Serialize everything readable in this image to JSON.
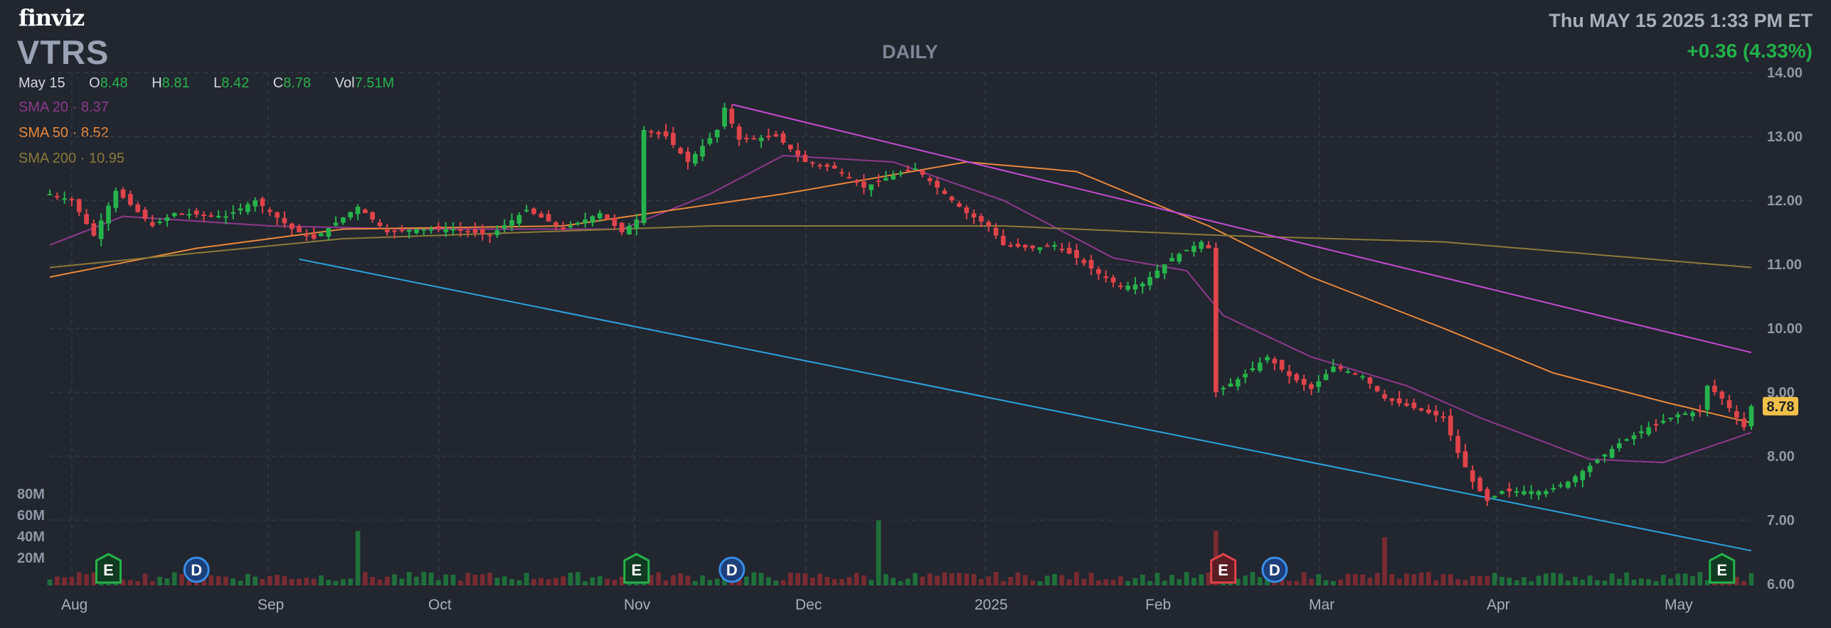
{
  "header": {
    "logo": "finviz",
    "ticker": "VTRS",
    "timeframe": "DAILY",
    "datetime": "Thu MAY 15 2025 1:33 PM ET",
    "change": "+0.36 (4.33%)"
  },
  "ohlc": {
    "date": "May 15",
    "o_label": "O",
    "o": "8.48",
    "h_label": "H",
    "h": "8.81",
    "l_label": "L",
    "l": "8.42",
    "c_label": "C",
    "c": "8.78",
    "vol_label": "Vol",
    "vol": "7.51M"
  },
  "sma_legend": [
    {
      "label": "SMA 20",
      "value": "8.37",
      "color": "#8e3a8c"
    },
    {
      "label": "SMA 50",
      "value": "8.52",
      "color": "#e8883a"
    },
    {
      "label": "SMA 200",
      "value": "10.95",
      "color": "#8a7a3a"
    }
  ],
  "colors": {
    "up": "#26b24c",
    "down": "#e0434b",
    "vol_up": "#1f6f3a",
    "vol_down": "#7a2a31",
    "trend_upper": "#c44bd0",
    "trend_lower": "#2aa3dd",
    "last_price_bg": "#f2c04a"
  },
  "last_price_label": "8.78",
  "chart_data": {
    "type": "candlestick",
    "title": "VTRS DAILY",
    "y_ticks": [
      "14.00",
      "13.00",
      "12.00",
      "11.00",
      "10.00",
      "9.00",
      "8.00",
      "7.00",
      "6.00"
    ],
    "ylim": [
      6.0,
      14.0
    ],
    "volume_ticks": [
      "80M",
      "60M",
      "40M",
      "20M"
    ],
    "x_ticks": [
      "Aug",
      "Sep",
      "Oct",
      "Nov",
      "Dec",
      "2025",
      "Feb",
      "Mar",
      "Apr",
      "May"
    ],
    "grid": true,
    "close_points": [
      {
        "i": 0,
        "c": 12.1
      },
      {
        "i": 3,
        "c": 12.0
      },
      {
        "i": 6,
        "c": 11.45
      },
      {
        "i": 9,
        "c": 12.15
      },
      {
        "i": 14,
        "c": 11.6
      },
      {
        "i": 17,
        "c": 11.8
      },
      {
        "i": 24,
        "c": 11.75
      },
      {
        "i": 28,
        "c": 12.0
      },
      {
        "i": 33,
        "c": 11.55
      },
      {
        "i": 36,
        "c": 11.4
      },
      {
        "i": 39,
        "c": 11.65
      },
      {
        "i": 42,
        "c": 11.9
      },
      {
        "i": 46,
        "c": 11.5
      },
      {
        "i": 50,
        "c": 11.55
      },
      {
        "i": 55,
        "c": 11.55
      },
      {
        "i": 60,
        "c": 11.45
      },
      {
        "i": 65,
        "c": 11.85
      },
      {
        "i": 70,
        "c": 11.55
      },
      {
        "i": 75,
        "c": 11.8
      },
      {
        "i": 78,
        "c": 11.5
      },
      {
        "i": 80,
        "c": 11.7
      },
      {
        "i": 81,
        "c": 13.1
      },
      {
        "i": 84,
        "c": 13.0
      },
      {
        "i": 87,
        "c": 12.6
      },
      {
        "i": 91,
        "c": 13.1
      },
      {
        "i": 92,
        "c": 13.45
      },
      {
        "i": 94,
        "c": 12.95
      },
      {
        "i": 99,
        "c": 13.0
      },
      {
        "i": 103,
        "c": 12.6
      },
      {
        "i": 107,
        "c": 12.5
      },
      {
        "i": 111,
        "c": 12.2
      },
      {
        "i": 114,
        "c": 12.35
      },
      {
        "i": 118,
        "c": 12.5
      },
      {
        "i": 122,
        "c": 12.1
      },
      {
        "i": 125,
        "c": 11.8
      },
      {
        "i": 128,
        "c": 11.6
      },
      {
        "i": 130,
        "c": 11.3
      },
      {
        "i": 134,
        "c": 11.25
      },
      {
        "i": 137,
        "c": 11.3
      },
      {
        "i": 140,
        "c": 11.1
      },
      {
        "i": 143,
        "c": 10.85
      },
      {
        "i": 146,
        "c": 10.65
      },
      {
        "i": 149,
        "c": 10.7
      },
      {
        "i": 153,
        "c": 11.1
      },
      {
        "i": 157,
        "c": 11.35
      },
      {
        "i": 158,
        "c": 11.25
      },
      {
        "i": 159,
        "c": 9.0
      },
      {
        "i": 162,
        "c": 9.2
      },
      {
        "i": 166,
        "c": 9.55
      },
      {
        "i": 169,
        "c": 9.25
      },
      {
        "i": 172,
        "c": 9.05
      },
      {
        "i": 175,
        "c": 9.4
      },
      {
        "i": 179,
        "c": 9.25
      },
      {
        "i": 182,
        "c": 8.9
      },
      {
        "i": 186,
        "c": 8.75
      },
      {
        "i": 190,
        "c": 8.6
      },
      {
        "i": 192,
        "c": 8.05
      },
      {
        "i": 194,
        "c": 7.6
      },
      {
        "i": 196,
        "c": 7.3
      },
      {
        "i": 198,
        "c": 7.45
      },
      {
        "i": 201,
        "c": 7.45
      },
      {
        "i": 204,
        "c": 7.45
      },
      {
        "i": 207,
        "c": 7.6
      },
      {
        "i": 210,
        "c": 7.85
      },
      {
        "i": 214,
        "c": 8.2
      },
      {
        "i": 218,
        "c": 8.45
      },
      {
        "i": 222,
        "c": 8.65
      },
      {
        "i": 225,
        "c": 8.7
      },
      {
        "i": 226,
        "c": 9.1
      },
      {
        "i": 228,
        "c": 8.9
      },
      {
        "i": 230,
        "c": 8.6
      },
      {
        "i": 231,
        "c": 8.45
      },
      {
        "i": 232,
        "c": 8.78
      }
    ],
    "sma": {
      "SMA 20": [
        {
          "i": 0,
          "v": 11.3
        },
        {
          "i": 10,
          "v": 11.75
        },
        {
          "i": 30,
          "v": 11.6
        },
        {
          "i": 50,
          "v": 11.55
        },
        {
          "i": 78,
          "v": 11.55
        },
        {
          "i": 90,
          "v": 12.1
        },
        {
          "i": 100,
          "v": 12.7
        },
        {
          "i": 115,
          "v": 12.6
        },
        {
          "i": 130,
          "v": 12.0
        },
        {
          "i": 145,
          "v": 11.1
        },
        {
          "i": 155,
          "v": 10.9
        },
        {
          "i": 160,
          "v": 10.2
        },
        {
          "i": 172,
          "v": 9.55
        },
        {
          "i": 185,
          "v": 9.1
        },
        {
          "i": 195,
          "v": 8.6
        },
        {
          "i": 210,
          "v": 7.95
        },
        {
          "i": 220,
          "v": 7.9
        },
        {
          "i": 232,
          "v": 8.37
        }
      ],
      "SMA 50": [
        {
          "i": 0,
          "v": 10.8
        },
        {
          "i": 20,
          "v": 11.25
        },
        {
          "i": 40,
          "v": 11.55
        },
        {
          "i": 70,
          "v": 11.6
        },
        {
          "i": 85,
          "v": 11.85
        },
        {
          "i": 100,
          "v": 12.1
        },
        {
          "i": 115,
          "v": 12.4
        },
        {
          "i": 125,
          "v": 12.6
        },
        {
          "i": 140,
          "v": 12.45
        },
        {
          "i": 158,
          "v": 11.6
        },
        {
          "i": 172,
          "v": 10.8
        },
        {
          "i": 190,
          "v": 10.0
        },
        {
          "i": 205,
          "v": 9.3
        },
        {
          "i": 220,
          "v": 8.85
        },
        {
          "i": 232,
          "v": 8.52
        }
      ],
      "SMA 200": [
        {
          "i": 0,
          "v": 10.95
        },
        {
          "i": 40,
          "v": 11.4
        },
        {
          "i": 90,
          "v": 11.6
        },
        {
          "i": 130,
          "v": 11.6
        },
        {
          "i": 160,
          "v": 11.45
        },
        {
          "i": 190,
          "v": 11.35
        },
        {
          "i": 232,
          "v": 10.95
        }
      ]
    },
    "trendlines": [
      {
        "name": "upper",
        "from": {
          "i": 93,
          "v": 13.5
        },
        "to": {
          "i": 232,
          "v": 9.62
        }
      },
      {
        "name": "lower",
        "from": {
          "i": 34,
          "v": 11.08
        },
        "to": {
          "i": 232,
          "v": 6.52
        }
      }
    ],
    "volume_spikes_millions": [
      {
        "i": 42,
        "v": 52
      },
      {
        "i": 113,
        "v": 62
      },
      {
        "i": 159,
        "v": 52
      },
      {
        "i": 182,
        "v": 46
      }
    ],
    "event_markers": [
      {
        "type": "E",
        "i": 8,
        "color": "#26b24c"
      },
      {
        "type": "D",
        "i": 20,
        "color": "#3a8ee8"
      },
      {
        "type": "E",
        "i": 80,
        "color": "#26b24c"
      },
      {
        "type": "D",
        "i": 93,
        "color": "#3a8ee8"
      },
      {
        "type": "E",
        "i": 160,
        "color": "#e0434b"
      },
      {
        "type": "D",
        "i": 167,
        "color": "#3a8ee8"
      },
      {
        "type": "E",
        "i": 228,
        "color": "#26b24c"
      }
    ]
  }
}
